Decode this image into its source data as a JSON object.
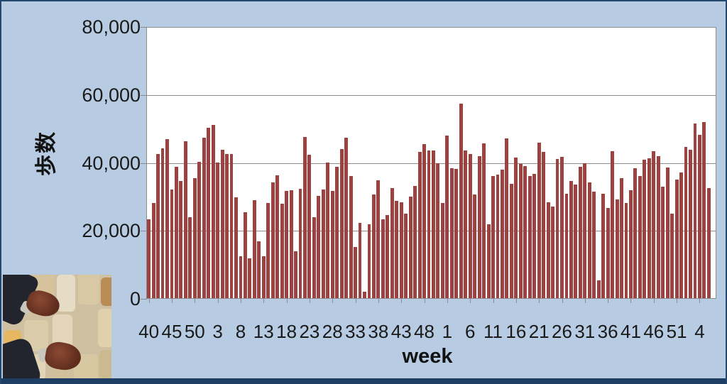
{
  "page": {
    "background_color": "#b7cce2",
    "frame_color": "#1e3e63"
  },
  "chart_data": {
    "type": "bar",
    "title": "",
    "ylabel": "歩数",
    "xlabel": "week",
    "ylim": [
      0,
      80000
    ],
    "ytick_interval": 20000,
    "ytick_labels": [
      "80,000",
      "60,000",
      "40,000",
      "20,000",
      "0"
    ],
    "grid": true,
    "legend": "none",
    "bar_color": "#9c4240",
    "x_tick_every": 5,
    "x_tick_labels": [
      "40",
      "45",
      "50",
      "3",
      "8",
      "13",
      "18",
      "23",
      "28",
      "33",
      "38",
      "43",
      "48",
      "1",
      "6",
      "11",
      "16",
      "21",
      "26",
      "31",
      "36",
      "41",
      "46",
      "51",
      "4"
    ],
    "values": [
      23200,
      28000,
      42500,
      44000,
      46700,
      32000,
      38600,
      34500,
      46100,
      23800,
      35200,
      40000,
      47200,
      50100,
      51000,
      39900,
      43700,
      42300,
      42500,
      29700,
      12400,
      25300,
      11700,
      28800,
      16800,
      12300,
      27900,
      34000,
      36100,
      27700,
      31500,
      31700,
      13700,
      32100,
      47500,
      42200,
      23800,
      30000,
      31900,
      39900,
      31600,
      38700,
      43900,
      47200,
      36000,
      15100,
      22100,
      1900,
      21700,
      30600,
      34700,
      23100,
      24500,
      32400,
      28700,
      28300,
      24800,
      29800,
      33000,
      43000,
      45400,
      43500,
      43500,
      39700,
      27900,
      47900,
      38200,
      38000,
      57300,
      43400,
      42300,
      30500,
      41800,
      45600,
      21800,
      36000,
      36300,
      37800,
      46900,
      33700,
      41300,
      39500,
      38800,
      36000,
      36600,
      45800,
      43000,
      28100,
      26900,
      40900,
      41600,
      30700,
      34500,
      33500,
      38700,
      39700,
      34000,
      31400,
      5300,
      30700,
      26500,
      43200,
      29000,
      35200,
      27900,
      31700,
      38300,
      35900,
      40800,
      41100,
      43200,
      41800,
      32800,
      38500,
      24900,
      34900,
      36900,
      44400,
      43700,
      51400,
      48100,
      51900,
      32400
    ]
  },
  "photo": {
    "name": "feet-on-stone-pavement-photo",
    "pavement_color": "#d9c9a8",
    "shoe_color": "#6e3526",
    "pants_color": "#23252e"
  }
}
